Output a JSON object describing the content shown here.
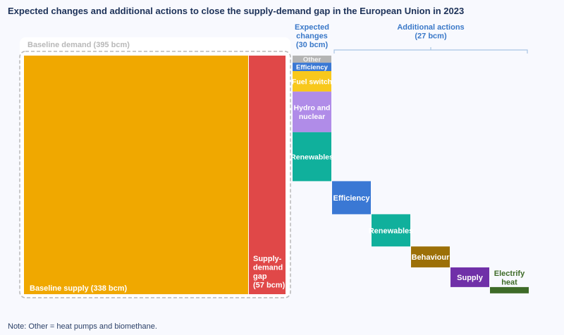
{
  "title": "Expected changes and additional actions to close the supply-demand gap in the European Union in 2023",
  "note": "Note: Other = heat pumps and biomethane.",
  "colors": {
    "background": "#f8f9fe",
    "title": "#1c3158",
    "header": "#3a78c8",
    "supply": "#f0a800",
    "gap": "#e04848",
    "other": "#b4b4b4",
    "efficiency": "#3a78d4",
    "fuel_switch": "#f8c81c",
    "hydro_nuclear": "#b08ce8",
    "renewables": "#10b09c",
    "behaviour": "#9c7008",
    "supply_action": "#7030a8",
    "electrify_heat": "#3e6b28",
    "electrify_label": "#3e6b28"
  },
  "chart_data": {
    "type": "waterfall",
    "title": "Expected changes and additional actions to close the supply-demand gap in the European Union in 2023",
    "units": "bcm",
    "baseline": {
      "demand_label": "Baseline demand (395 bcm)",
      "demand_value": 395,
      "supply_label": "Baseline supply (338 bcm)",
      "supply_value": 338,
      "gap_label": "Supply-demand gap (57 bcm)",
      "gap_lines": [
        "Supply-",
        "demand",
        "gap",
        "(57 bcm)"
      ],
      "gap_value": 57
    },
    "groups": [
      {
        "header_lines": [
          "Expected",
          "changes",
          "(30 bcm)"
        ],
        "total": 30,
        "stacked": true,
        "items": [
          {
            "label": "Other",
            "value": 1.7,
            "color_key": "other"
          },
          {
            "label": "Efficiency",
            "value": 2.0,
            "color_key": "efficiency"
          },
          {
            "label": "Fuel switch",
            "value": 4.9,
            "color_key": "fuel_switch"
          },
          {
            "label_lines": [
              "Hydro and",
              "nuclear"
            ],
            "label": "Hydro and nuclear",
            "value": 9.7,
            "color_key": "hydro_nuclear"
          },
          {
            "label": "Renewables",
            "value": 11.7,
            "color_key": "renewables"
          }
        ]
      },
      {
        "header_lines": [
          "Additional actions",
          "(27 bcm)"
        ],
        "total": 27,
        "stacked": false,
        "items": [
          {
            "label": "Efficiency",
            "value": 7.9,
            "color_key": "efficiency"
          },
          {
            "label": "Renewables",
            "value": 7.7,
            "color_key": "renewables"
          },
          {
            "label": "Behaviour",
            "value": 5.0,
            "color_key": "behaviour"
          },
          {
            "label": "Supply",
            "value": 4.7,
            "color_key": "supply_action"
          },
          {
            "label_lines": [
              "Electrify",
              "heat"
            ],
            "label": "Electrify heat",
            "value": 1.5,
            "color_key": "electrify_heat",
            "label_outside": true
          }
        ]
      }
    ]
  }
}
